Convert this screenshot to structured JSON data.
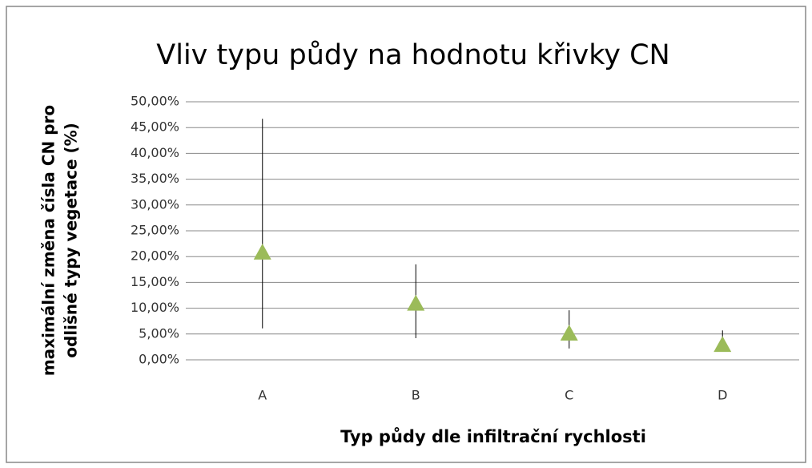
{
  "chart_data": {
    "type": "scatter",
    "title": "Vliv typu půdy na hodnotu křivky CN",
    "y_label": [
      "maximální změna čísla CN pro",
      "odlišné typy vegetace (%)"
    ],
    "x_label": "Typ půdy dle infiltrační rychlosti",
    "categories": [
      "A",
      "B",
      "C",
      "D"
    ],
    "values": [
      20.8,
      10.9,
      5.1,
      2.9
    ],
    "high": [
      46.7,
      18.5,
      9.6,
      5.7
    ],
    "low": [
      6.1,
      4.2,
      2.2,
      2.0
    ],
    "color": "#9bbb59",
    "ylim": [
      0,
      50
    ],
    "yticks": [
      {
        "value": 0,
        "label": "0,00%"
      },
      {
        "value": 5,
        "label": "5,00%"
      },
      {
        "value": 10,
        "label": "10,00%"
      },
      {
        "value": 15,
        "label": "15,00%"
      },
      {
        "value": 20,
        "label": "20,00%"
      },
      {
        "value": 25,
        "label": "25,00%"
      },
      {
        "value": 30,
        "label": "30,00%"
      },
      {
        "value": 35,
        "label": "35,00%"
      },
      {
        "value": 40,
        "label": "40,00%"
      },
      {
        "value": 45,
        "label": "45,00%"
      },
      {
        "value": 50,
        "label": "50,00%"
      }
    ],
    "grid": true
  }
}
